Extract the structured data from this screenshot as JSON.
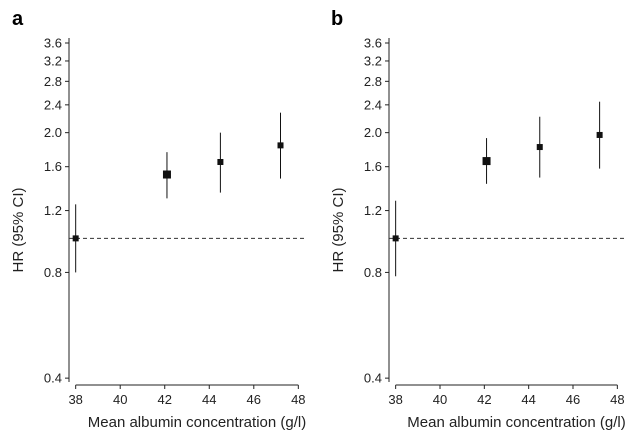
{
  "chart_data": [
    {
      "panel_label": "a",
      "type": "scatter",
      "xlabel": "Mean albumin concentration (g/l)",
      "ylabel": "HR (95% CI)",
      "y_scale": "log",
      "xlim": [
        37.7,
        48.3
      ],
      "ylim": [
        0.39,
        3.72
      ],
      "xticks": [
        "38",
        "40",
        "42",
        "44",
        "46",
        "48"
      ],
      "yticks": [
        "0.4",
        "0.8",
        "1.2",
        "1.6",
        "2.0",
        "2.4",
        "2.8",
        "3.2",
        "3.6"
      ],
      "reference_line": 1.0,
      "points": [
        {
          "x": 38.0,
          "y": 1.0,
          "lo": 0.8,
          "hi": 1.25
        },
        {
          "x": 42.1,
          "y": 1.52,
          "lo": 1.3,
          "hi": 1.76
        },
        {
          "x": 44.5,
          "y": 1.65,
          "lo": 1.35,
          "hi": 2.0
        },
        {
          "x": 47.2,
          "y": 1.84,
          "lo": 1.48,
          "hi": 2.28
        }
      ]
    },
    {
      "panel_label": "b",
      "type": "scatter",
      "xlabel": "Mean albumin concentration (g/l)",
      "ylabel": "HR (95% CI)",
      "y_scale": "log",
      "xlim": [
        37.7,
        48.3
      ],
      "ylim": [
        0.39,
        3.72
      ],
      "xticks": [
        "38",
        "40",
        "42",
        "44",
        "46",
        "48"
      ],
      "yticks": [
        "0.4",
        "0.8",
        "1.2",
        "1.6",
        "2.0",
        "2.4",
        "2.8",
        "3.2",
        "3.6"
      ],
      "reference_line": 1.0,
      "points": [
        {
          "x": 38.0,
          "y": 1.0,
          "lo": 0.78,
          "hi": 1.28
        },
        {
          "x": 42.1,
          "y": 1.66,
          "lo": 1.43,
          "hi": 1.93
        },
        {
          "x": 44.5,
          "y": 1.82,
          "lo": 1.49,
          "hi": 2.22
        },
        {
          "x": 47.2,
          "y": 1.97,
          "lo": 1.58,
          "hi": 2.45
        }
      ]
    }
  ]
}
